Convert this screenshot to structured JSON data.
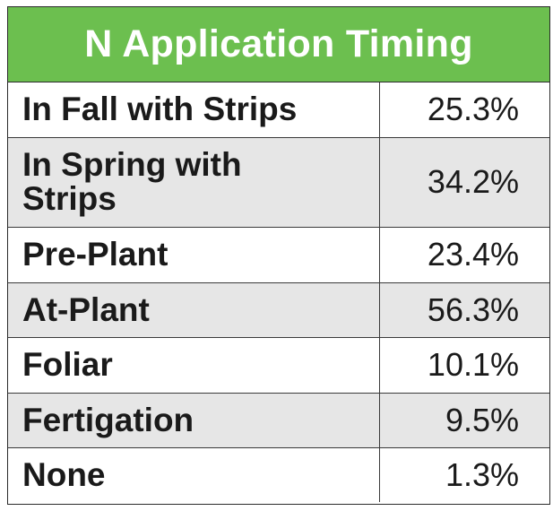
{
  "chart_data": {
    "type": "table",
    "title": "N Application Timing",
    "rows": [
      {
        "label": "In Fall with Strips",
        "value": "25.3%"
      },
      {
        "label": "In Spring with Strips",
        "value": "34.2%"
      },
      {
        "label": "Pre-Plant",
        "value": "23.4%"
      },
      {
        "label": "At-Plant",
        "value": "56.3%"
      },
      {
        "label": "Foliar",
        "value": "10.1%"
      },
      {
        "label": "Fertigation",
        "value": "9.5%"
      },
      {
        "label": "None",
        "value": "1.3%"
      }
    ],
    "header_color": "#6cbf4f",
    "stripe_color": "#e6e6e6"
  }
}
